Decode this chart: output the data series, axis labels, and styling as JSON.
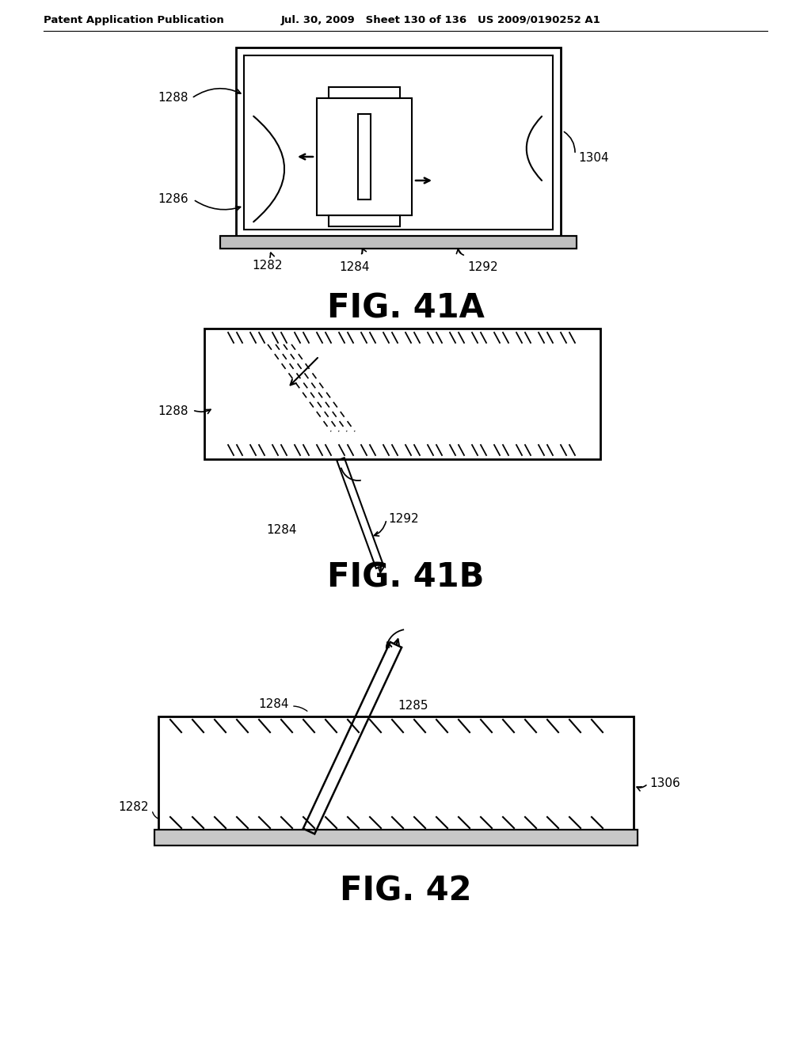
{
  "bg_color": "#ffffff",
  "header_left": "Patent Application Publication",
  "header_mid": "Jul. 30, 2009   Sheet 130 of 136   US 2009/0190252 A1",
  "fig41a_title": "FIG. 41A",
  "fig41b_title": "FIG. 41B",
  "fig42_title": "FIG. 42",
  "line_color": "#000000",
  "text_color": "#000000"
}
